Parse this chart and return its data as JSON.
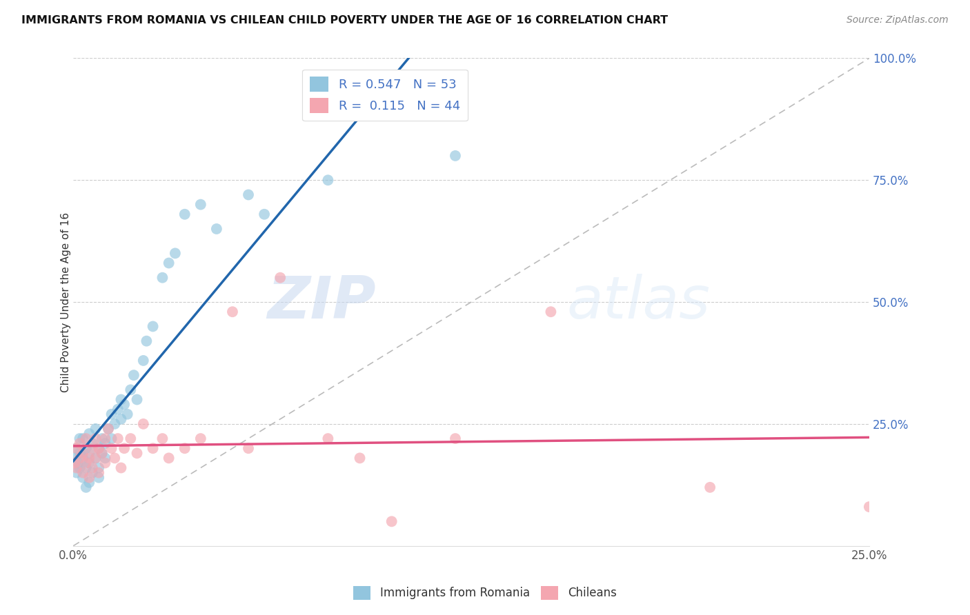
{
  "title": "IMMIGRANTS FROM ROMANIA VS CHILEAN CHILD POVERTY UNDER THE AGE OF 16 CORRELATION CHART",
  "source": "Source: ZipAtlas.com",
  "ylabel": "Child Poverty Under the Age of 16",
  "xmin": 0.0,
  "xmax": 0.25,
  "ymin": 0.0,
  "ymax": 1.0,
  "legend1_label": "R = 0.547   N = 53",
  "legend2_label": "R =  0.115   N = 44",
  "legend_bottom1": "Immigrants from Romania",
  "legend_bottom2": "Chileans",
  "blue_color": "#92c5de",
  "pink_color": "#f4a6b0",
  "blue_line_color": "#2166ac",
  "pink_line_color": "#e05080",
  "dashed_line_color": "#bbbbbb",
  "watermark_zip": "ZIP",
  "watermark_atlas": "atlas",
  "romania_x": [
    0.0005,
    0.001,
    0.001,
    0.0015,
    0.002,
    0.002,
    0.002,
    0.003,
    0.003,
    0.003,
    0.004,
    0.004,
    0.004,
    0.005,
    0.005,
    0.005,
    0.005,
    0.006,
    0.006,
    0.007,
    0.007,
    0.008,
    0.008,
    0.008,
    0.009,
    0.009,
    0.01,
    0.01,
    0.011,
    0.012,
    0.012,
    0.013,
    0.014,
    0.015,
    0.015,
    0.016,
    0.017,
    0.018,
    0.019,
    0.02,
    0.022,
    0.023,
    0.025,
    0.028,
    0.03,
    0.032,
    0.035,
    0.04,
    0.045,
    0.055,
    0.06,
    0.08,
    0.12
  ],
  "romania_y": [
    0.18,
    0.15,
    0.2,
    0.17,
    0.16,
    0.22,
    0.19,
    0.14,
    0.18,
    0.22,
    0.12,
    0.2,
    0.16,
    0.13,
    0.19,
    0.23,
    0.17,
    0.21,
    0.15,
    0.18,
    0.24,
    0.14,
    0.2,
    0.16,
    0.19,
    0.22,
    0.21,
    0.18,
    0.24,
    0.27,
    0.22,
    0.25,
    0.28,
    0.3,
    0.26,
    0.29,
    0.27,
    0.32,
    0.35,
    0.3,
    0.38,
    0.42,
    0.45,
    0.55,
    0.58,
    0.6,
    0.68,
    0.7,
    0.65,
    0.72,
    0.68,
    0.75,
    0.8
  ],
  "chilean_x": [
    0.0005,
    0.001,
    0.001,
    0.002,
    0.002,
    0.003,
    0.003,
    0.004,
    0.004,
    0.005,
    0.005,
    0.006,
    0.006,
    0.007,
    0.007,
    0.008,
    0.008,
    0.009,
    0.01,
    0.01,
    0.011,
    0.012,
    0.013,
    0.014,
    0.015,
    0.016,
    0.018,
    0.02,
    0.022,
    0.025,
    0.028,
    0.03,
    0.035,
    0.04,
    0.05,
    0.055,
    0.065,
    0.08,
    0.09,
    0.1,
    0.12,
    0.15,
    0.2,
    0.25
  ],
  "chilean_y": [
    0.17,
    0.16,
    0.2,
    0.18,
    0.21,
    0.15,
    0.19,
    0.17,
    0.22,
    0.14,
    0.18,
    0.2,
    0.16,
    0.22,
    0.18,
    0.15,
    0.2,
    0.19,
    0.17,
    0.22,
    0.24,
    0.2,
    0.18,
    0.22,
    0.16,
    0.2,
    0.22,
    0.19,
    0.25,
    0.2,
    0.22,
    0.18,
    0.2,
    0.22,
    0.48,
    0.2,
    0.55,
    0.22,
    0.18,
    0.05,
    0.22,
    0.48,
    0.12,
    0.08
  ]
}
